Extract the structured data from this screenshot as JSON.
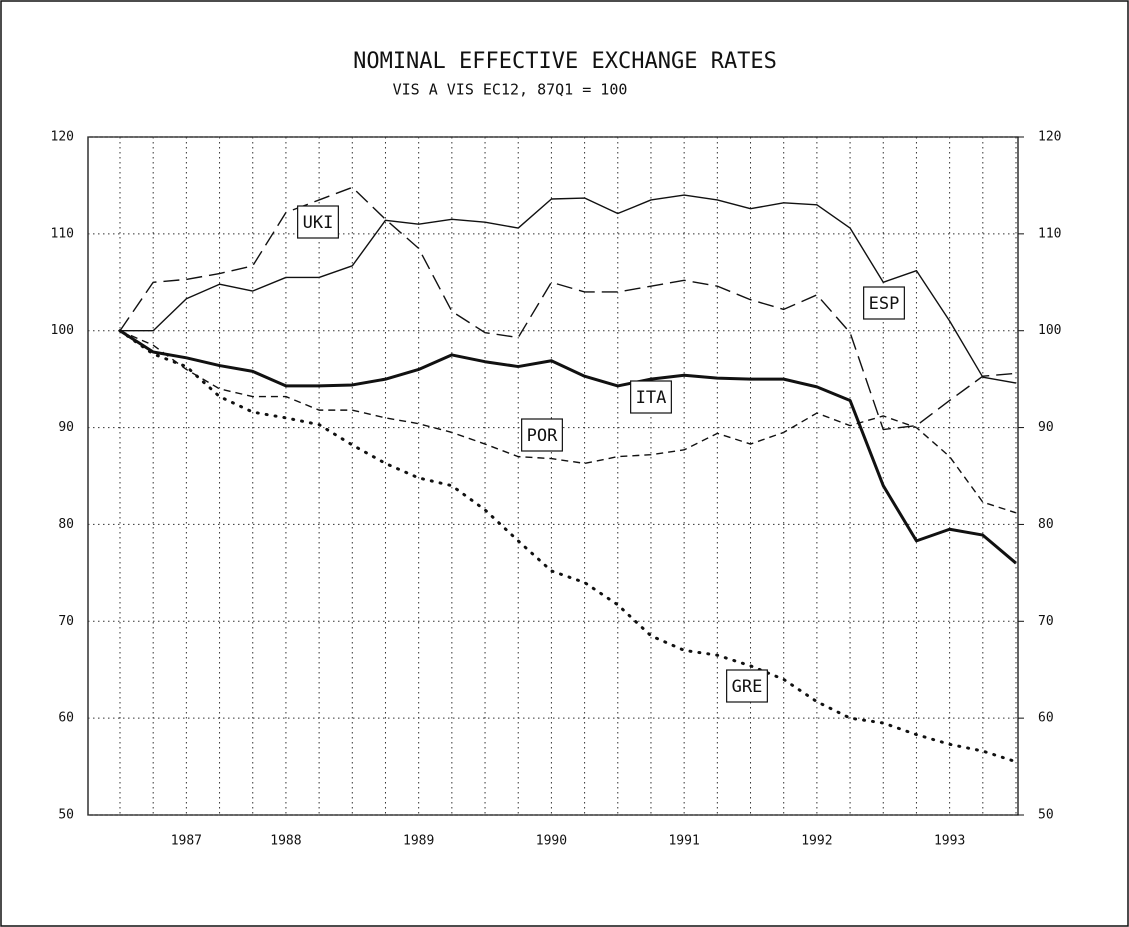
{
  "chart_data": {
    "type": "line",
    "title": "NOMINAL EFFECTIVE EXCHANGE RATES",
    "subtitle": "VIS A VIS EC12, 87Q1 = 100",
    "categories": [
      null,
      null,
      "1987",
      null,
      null,
      "1988",
      null,
      null,
      null,
      "1989",
      null,
      null,
      null,
      "1990",
      null,
      null,
      null,
      "1991",
      null,
      null,
      null,
      "1992",
      null,
      null,
      null,
      "1993",
      null,
      null
    ],
    "ylim": [
      50,
      120
    ],
    "yticks": [
      50,
      60,
      70,
      80,
      90,
      100,
      110,
      120
    ],
    "y2lim": [
      50,
      120
    ],
    "y2ticks": [
      50,
      60,
      70,
      80,
      90,
      100,
      110,
      120
    ],
    "grid": true,
    "series": [
      {
        "name": "UKI",
        "color": "#111111",
        "dash": "long",
        "values": [
          100,
          105,
          105.3,
          105.9,
          106.7,
          112.2,
          113.5,
          114.8,
          111.5,
          108.5,
          102,
          99.8,
          99.3,
          105,
          104,
          104,
          104.6,
          105.2,
          104.6,
          103.2,
          102.2,
          103.7,
          99.8,
          89.8,
          90.2,
          92.8,
          95.3,
          95.6
        ]
      },
      {
        "name": "ESP",
        "color": "#111111",
        "dash": "solid",
        "values": [
          100,
          100,
          103.3,
          104.8,
          104.1,
          105.5,
          105.5,
          106.7,
          111.4,
          111,
          111.5,
          111.2,
          110.6,
          113.6,
          113.7,
          112.1,
          113.5,
          114,
          113.5,
          112.6,
          113.2,
          113,
          110.6,
          105,
          106.2,
          101,
          95.2,
          94.6
        ]
      },
      {
        "name": "ITA",
        "color": "#111111",
        "dash": "thick",
        "values": [
          100,
          97.8,
          97.2,
          96.4,
          95.8,
          94.3,
          94.3,
          94.4,
          95,
          96,
          97.5,
          96.8,
          96.3,
          96.9,
          95.3,
          94.3,
          95,
          95.4,
          95.1,
          95,
          95,
          94.2,
          92.8,
          84,
          78.3,
          79.5,
          78.9,
          76
        ]
      },
      {
        "name": "POR",
        "color": "#111111",
        "dash": "short",
        "values": [
          100,
          98.5,
          96,
          94,
          93.2,
          93.2,
          91.8,
          91.8,
          91,
          90.4,
          89.5,
          88.3,
          87,
          86.8,
          86.3,
          87,
          87.2,
          87.7,
          89.4,
          88.3,
          89.5,
          91.5,
          90.2,
          91.2,
          90,
          87,
          82.3,
          81.2
        ]
      },
      {
        "name": "GRE",
        "color": "#111111",
        "dash": "dotted",
        "values": [
          100,
          97.6,
          96.3,
          93.2,
          91.6,
          91,
          90.3,
          88.2,
          86.3,
          84.8,
          84,
          81.5,
          78.3,
          75.2,
          74,
          71.7,
          68.5,
          67,
          66.5,
          65.4,
          64,
          61.7,
          60,
          59.5,
          58.3,
          57.3,
          56.6,
          55.5
        ]
      }
    ]
  }
}
